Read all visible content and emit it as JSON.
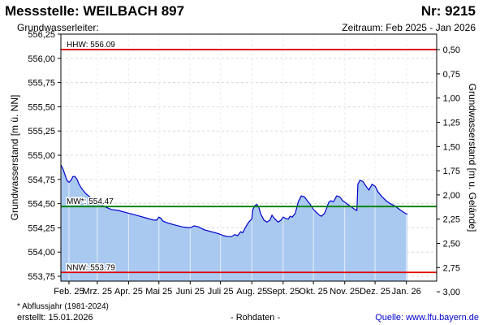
{
  "header": {
    "title": "Messstelle: WEILBACH 897",
    "number": "Nr: 9215",
    "aquifer": "Grundwasserleiter:",
    "period": "Zeitraum: Feb 2025 - Jan 2026"
  },
  "footer": {
    "footnote": "* Abflussjahr (1981-2024)",
    "created": "erstellt:  15.01.2026",
    "raw": "- Rohdaten -",
    "source": "Quelle: www.lfu.bayern.de"
  },
  "chart_data": {
    "type": "area",
    "ylabel_left": "Grundwasserstand [m ü. NN]",
    "ylabel_right": "Grundwasserstand [m u. Gelände]",
    "ylim": [
      553.7,
      556.25
    ],
    "y_ticks": [
      "556,25",
      "556,00",
      "555,75",
      "555,50",
      "555,25",
      "555,00",
      "554,75",
      "554,50",
      "554,25",
      "554,00",
      "553,75"
    ],
    "y_tick_values": [
      556.25,
      556.0,
      555.75,
      555.5,
      555.25,
      555.0,
      554.75,
      554.5,
      554.25,
      554.0,
      553.75
    ],
    "right_ticks": [
      "0,50",
      "0,75",
      "1,00",
      "1,25",
      "1,50",
      "1,75",
      "2,00",
      "2,25",
      "2,50",
      "2,75",
      "3,00"
    ],
    "right_tick_ground_offset": 556.59,
    "right_tick_depths": [
      0.5,
      0.75,
      1.0,
      1.25,
      1.5,
      1.75,
      2.0,
      2.25,
      2.5,
      2.75,
      3.0
    ],
    "x_ticks": [
      "Feb. 25",
      "Mrz. 25",
      "Apr. 25",
      "Mai 25",
      "Juni 25",
      "Juli 25",
      "Aug. 25",
      "Sept. 25",
      "Okt. 25",
      "Nov. 25",
      "Dez. 25",
      "Jan. 26"
    ],
    "x_tick_dates": [
      "2025-02-01",
      "2025-03-01",
      "2025-04-01",
      "2025-05-01",
      "2025-06-01",
      "2025-07-01",
      "2025-08-01",
      "2025-09-01",
      "2025-10-01",
      "2025-11-01",
      "2025-12-01",
      "2026-01-01"
    ],
    "xlim": [
      "2025-01-24",
      "2026-01-31"
    ],
    "reference_lines": [
      {
        "label": "HHW: 556.09",
        "value": 556.09,
        "color": "#e00000"
      },
      {
        "label": "MW*: 554.47",
        "value": 554.47,
        "color": "#008000"
      },
      {
        "label": "NNW: 553.79",
        "value": 553.79,
        "color": "#e00000"
      }
    ],
    "series": [
      {
        "color": "#0000cc",
        "fill": "#a9c9f0",
        "points": [
          [
            "2025-01-24",
            554.9
          ],
          [
            "2025-01-26",
            554.86
          ],
          [
            "2025-01-28",
            554.8
          ],
          [
            "2025-01-30",
            554.74
          ],
          [
            "2025-02-01",
            554.72
          ],
          [
            "2025-02-03",
            554.74
          ],
          [
            "2025-02-05",
            554.78
          ],
          [
            "2025-02-07",
            554.78
          ],
          [
            "2025-02-09",
            554.75
          ],
          [
            "2025-02-11",
            554.7
          ],
          [
            "2025-02-14",
            554.65
          ],
          [
            "2025-02-18",
            554.6
          ],
          [
            "2025-02-23",
            554.56
          ],
          [
            "2025-03-01",
            554.51
          ],
          [
            "2025-03-08",
            554.47
          ],
          [
            "2025-03-15",
            554.44
          ],
          [
            "2025-03-22",
            554.43
          ],
          [
            "2025-03-29",
            554.41
          ],
          [
            "2025-04-05",
            554.39
          ],
          [
            "2025-04-12",
            554.37
          ],
          [
            "2025-04-19",
            554.35
          ],
          [
            "2025-04-26",
            554.33
          ],
          [
            "2025-04-29",
            554.33
          ],
          [
            "2025-05-01",
            554.36
          ],
          [
            "2025-05-03",
            554.35
          ],
          [
            "2025-05-05",
            554.32
          ],
          [
            "2025-05-10",
            554.3
          ],
          [
            "2025-05-17",
            554.28
          ],
          [
            "2025-05-24",
            554.26
          ],
          [
            "2025-06-01",
            554.25
          ],
          [
            "2025-06-05",
            554.27
          ],
          [
            "2025-06-09",
            554.26
          ],
          [
            "2025-06-15",
            554.23
          ],
          [
            "2025-06-22",
            554.21
          ],
          [
            "2025-06-29",
            554.19
          ],
          [
            "2025-07-04",
            554.17
          ],
          [
            "2025-07-08",
            554.16
          ],
          [
            "2025-07-12",
            554.16
          ],
          [
            "2025-07-15",
            554.18
          ],
          [
            "2025-07-18",
            554.17
          ],
          [
            "2025-07-21",
            554.21
          ],
          [
            "2025-07-23",
            554.2
          ],
          [
            "2025-07-26",
            554.26
          ],
          [
            "2025-07-29",
            554.31
          ],
          [
            "2025-08-01",
            554.34
          ],
          [
            "2025-08-02",
            554.44
          ],
          [
            "2025-08-04",
            554.48
          ],
          [
            "2025-08-06",
            554.49
          ],
          [
            "2025-08-08",
            554.46
          ],
          [
            "2025-08-10",
            554.39
          ],
          [
            "2025-08-13",
            554.33
          ],
          [
            "2025-08-16",
            554.31
          ],
          [
            "2025-08-19",
            554.33
          ],
          [
            "2025-08-21",
            554.38
          ],
          [
            "2025-08-24",
            554.34
          ],
          [
            "2025-08-27",
            554.31
          ],
          [
            "2025-08-30",
            554.33
          ],
          [
            "2025-09-01",
            554.36
          ],
          [
            "2025-09-03",
            554.35
          ],
          [
            "2025-09-06",
            554.34
          ],
          [
            "2025-09-08",
            554.37
          ],
          [
            "2025-09-10",
            554.36
          ],
          [
            "2025-09-13",
            554.4
          ],
          [
            "2025-09-16",
            554.52
          ],
          [
            "2025-09-19",
            554.58
          ],
          [
            "2025-09-22",
            554.57
          ],
          [
            "2025-09-25",
            554.53
          ],
          [
            "2025-09-28",
            554.49
          ],
          [
            "2025-10-01",
            554.44
          ],
          [
            "2025-10-04",
            554.41
          ],
          [
            "2025-10-07",
            554.38
          ],
          [
            "2025-10-09",
            554.37
          ],
          [
            "2025-10-12",
            554.4
          ],
          [
            "2025-10-14",
            554.45
          ],
          [
            "2025-10-16",
            554.51
          ],
          [
            "2025-10-18",
            554.53
          ],
          [
            "2025-10-21",
            554.52
          ],
          [
            "2025-10-24",
            554.58
          ],
          [
            "2025-10-27",
            554.57
          ],
          [
            "2025-10-30",
            554.53
          ],
          [
            "2025-11-03",
            554.5
          ],
          [
            "2025-11-07",
            554.47
          ],
          [
            "2025-11-11",
            554.44
          ],
          [
            "2025-11-13",
            554.43
          ],
          [
            "2025-11-14",
            554.7
          ],
          [
            "2025-11-16",
            554.74
          ],
          [
            "2025-11-19",
            554.73
          ],
          [
            "2025-11-22",
            554.68
          ],
          [
            "2025-11-25",
            554.64
          ],
          [
            "2025-11-28",
            554.7
          ],
          [
            "2025-12-01",
            554.68
          ],
          [
            "2025-12-04",
            554.62
          ],
          [
            "2025-12-08",
            554.57
          ],
          [
            "2025-12-12",
            554.53
          ],
          [
            "2025-12-16",
            554.5
          ],
          [
            "2025-12-20",
            554.48
          ],
          [
            "2025-12-24",
            554.45
          ],
          [
            "2025-12-28",
            554.42
          ],
          [
            "2025-12-31",
            554.4
          ],
          [
            "2026-01-02",
            554.39
          ]
        ]
      }
    ],
    "grid": true
  }
}
